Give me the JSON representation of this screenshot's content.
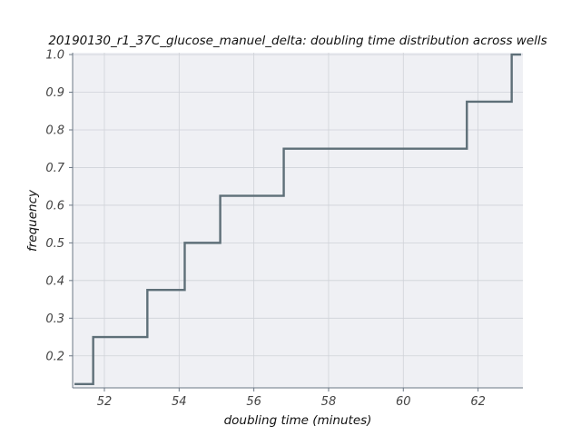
{
  "chart_data": {
    "type": "line",
    "subtype": "ecdf-step",
    "title": "20190130_r1_37C_glucose_manuel_delta: doubling time distribution across wells",
    "xlabel": "doubling time (minutes)",
    "ylabel": "frequency",
    "xlim": [
      51.15,
      63.2
    ],
    "ylim": [
      0.115,
      1.005
    ],
    "xticks": [
      52,
      54,
      56,
      58,
      60,
      62
    ],
    "yticks": [
      0.2,
      0.3,
      0.4,
      0.5,
      0.6,
      0.7,
      0.8,
      0.9,
      1.0
    ],
    "xtick_labels": [
      "52",
      "54",
      "56",
      "58",
      "60",
      "62"
    ],
    "ytick_labels": [
      "0.2",
      "0.3",
      "0.4",
      "0.5",
      "0.6",
      "0.7",
      "0.8",
      "0.9",
      "1.0"
    ],
    "grid": true,
    "legend": "none",
    "series": [
      {
        "color": "#5e6f78",
        "x": [
          51.2,
          51.7,
          53.15,
          54.15,
          55.1,
          56.8,
          61.7,
          62.9,
          63.15
        ],
        "y": [
          0.125,
          0.25,
          0.375,
          0.5,
          0.625,
          0.75,
          0.875,
          1.0,
          1.0
        ]
      }
    ],
    "colors": {
      "plot_background": "#eff0f4",
      "grid": "#cfd2d8",
      "spine": "#6b7785"
    }
  }
}
